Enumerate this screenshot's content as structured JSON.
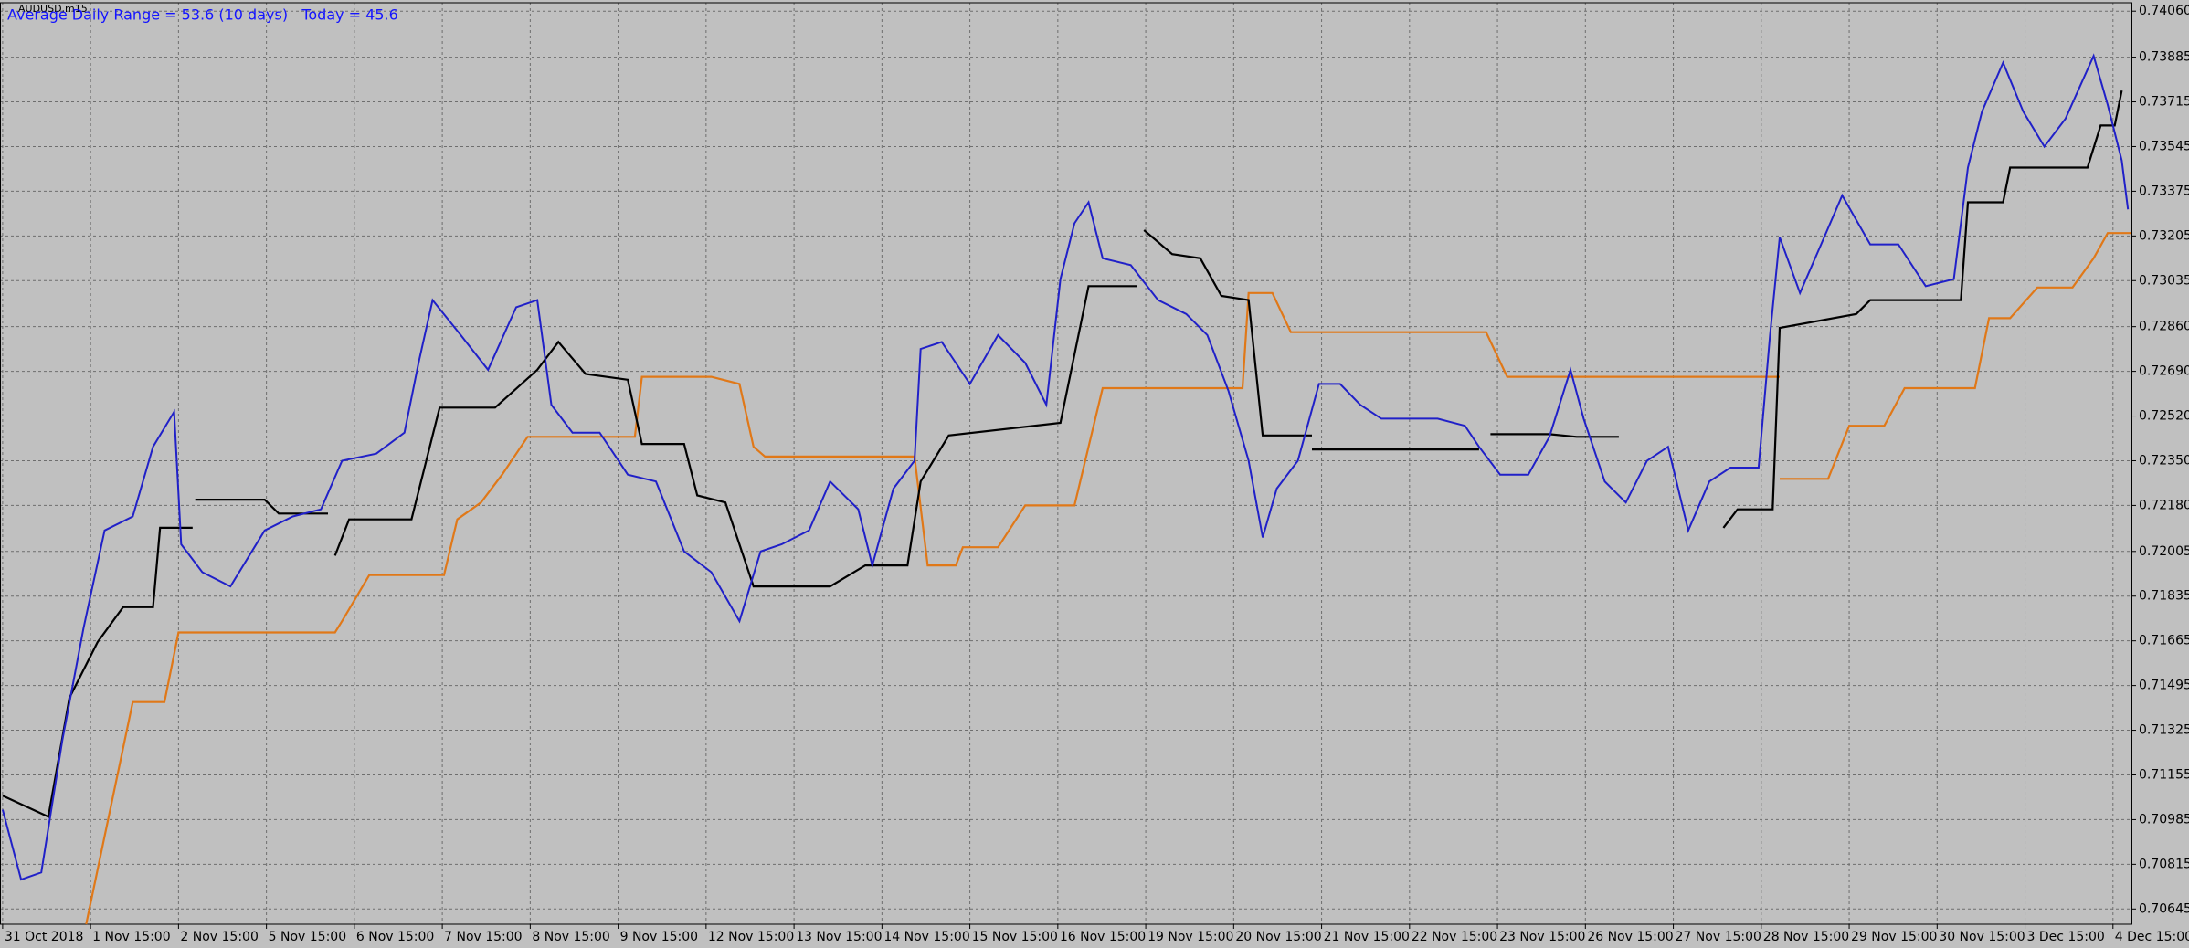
{
  "chart_data": {
    "type": "line",
    "title": "Average Daily Range = 53.6 (10 days)   Today = 45.6",
    "subtitle": "AUDUSD,m15",
    "xlim": [
      -0.03,
      24.21
    ],
    "xticks": [
      {
        "value": 0,
        "label": "31 Oct 2018"
      },
      {
        "value": 1,
        "label": "1 Nov 15:00"
      },
      {
        "value": 2,
        "label": "2 Nov 15:00"
      },
      {
        "value": 3,
        "label": "5 Nov 15:00"
      },
      {
        "value": 4,
        "label": "6 Nov 15:00"
      },
      {
        "value": 5,
        "label": "7 Nov 15:00"
      },
      {
        "value": 6,
        "label": "8 Nov 15:00"
      },
      {
        "value": 7,
        "label": "9 Nov 15:00"
      },
      {
        "value": 8,
        "label": "12 Nov 15:00"
      },
      {
        "value": 9,
        "label": "13 Nov 15:00"
      },
      {
        "value": 10,
        "label": "14 Nov 15:00"
      },
      {
        "value": 11,
        "label": "15 Nov 15:00"
      },
      {
        "value": 12,
        "label": "16 Nov 15:00"
      },
      {
        "value": 13,
        "label": "19 Nov 15:00"
      },
      {
        "value": 14,
        "label": "20 Nov 15:00"
      },
      {
        "value": 15,
        "label": "21 Nov 15:00"
      },
      {
        "value": 16,
        "label": "22 Nov 15:00"
      },
      {
        "value": 17,
        "label": "23 Nov 15:00"
      },
      {
        "value": 18,
        "label": "26 Nov 15:00"
      },
      {
        "value": 19,
        "label": "27 Nov 15:00"
      },
      {
        "value": 20,
        "label": "28 Nov 15:00"
      },
      {
        "value": 21,
        "label": "29 Nov 15:00"
      },
      {
        "value": 22,
        "label": "30 Nov 15:00"
      },
      {
        "value": 23,
        "label": "3 Dec 15:00"
      },
      {
        "value": 24,
        "label": "4 Dec 15:00"
      }
    ],
    "ylim": [
      0.70587,
      0.74092
    ],
    "yticks": [
      {
        "value": 0.7406,
        "label": "0.74060"
      },
      0.73885,
      0.73715,
      0.73545,
      0.73375,
      0.73205,
      0.73035,
      {
        "value": 0.7286,
        "label": "0.72860"
      },
      {
        "value": 0.7269,
        "label": "0.72690"
      },
      {
        "value": 0.7252,
        "label": "0.72520"
      },
      {
        "value": 0.7235,
        "label": "0.72350"
      },
      {
        "value": 0.7218,
        "label": "0.72180"
      },
      0.72005,
      0.71835,
      0.71665,
      0.71495,
      0.71325,
      0.71155,
      0.70985,
      0.70815,
      0.70645
    ],
    "grid": true,
    "series": [
      {
        "color": "#2020c8",
        "x": [
          0,
          0.21,
          0.44,
          0.68,
          0.92,
          1.16,
          1.48,
          1.71,
          1.95,
          2.03,
          2.27,
          2.59,
          2.98,
          3.3,
          3.62,
          3.86,
          4.25,
          4.57,
          4.73,
          4.89,
          5.21,
          5.52,
          5.84,
          6.08,
          6.24,
          6.48,
          6.79,
          7.11,
          7.43,
          7.75,
          8.06,
          8.38,
          8.62,
          8.86,
          9.17,
          9.41,
          9.73,
          9.89,
          10.13,
          10.37,
          10.44,
          10.68,
          11.0,
          11.32,
          11.63,
          11.87,
          12.03,
          12.19,
          12.35,
          12.51,
          12.83,
          13.14,
          13.46,
          13.7,
          13.94,
          14.17,
          14.33,
          14.49,
          14.73,
          14.97,
          15.21,
          15.44,
          15.68,
          16.0,
          16.32,
          16.63,
          16.79,
          17.03,
          17.35,
          17.59,
          17.83,
          17.98,
          18.22,
          18.46,
          18.7,
          18.94,
          19.17,
          19.41,
          19.65,
          19.97,
          20.1,
          20.21,
          20.44,
          20.68,
          20.92,
          21.24,
          21.56,
          21.87,
          22.19,
          22.35,
          22.51,
          22.75,
          22.98,
          23.22,
          23.46,
          23.78,
          23.94,
          24.1,
          24.17
        ],
        "values": [
          0.71023,
          0.70757,
          0.70784,
          0.71288,
          0.71713,
          0.72085,
          0.72138,
          0.72403,
          0.72536,
          0.72032,
          0.71926,
          0.71872,
          0.72085,
          0.72138,
          0.72165,
          0.7235,
          0.72377,
          0.72457,
          0.72722,
          0.72961,
          0.72828,
          0.72696,
          0.72934,
          0.72961,
          0.72563,
          0.72457,
          0.72457,
          0.72297,
          0.72271,
          0.72005,
          0.71926,
          0.7174,
          0.72005,
          0.72032,
          0.72085,
          0.72271,
          0.72165,
          0.71952,
          0.72244,
          0.7235,
          0.72775,
          0.72802,
          0.72642,
          0.72828,
          0.72722,
          0.72563,
          0.73041,
          0.73253,
          0.73333,
          0.7312,
          0.73094,
          0.72961,
          0.72908,
          0.72828,
          0.72616,
          0.7235,
          0.72058,
          0.72244,
          0.7235,
          0.72642,
          0.72642,
          0.72563,
          0.7251,
          0.7251,
          0.7251,
          0.72483,
          0.72403,
          0.72297,
          0.72297,
          0.72441,
          0.72696,
          0.7251,
          0.72271,
          0.72191,
          0.7235,
          0.72403,
          0.72085,
          0.72271,
          0.72324,
          0.72324,
          0.72828,
          0.732,
          0.72988,
          0.73173,
          0.73359,
          0.73173,
          0.73173,
          0.73014,
          0.73041,
          0.73465,
          0.73678,
          0.73864,
          0.73678,
          0.73545,
          0.73651,
          0.7389,
          0.73704,
          0.73492,
          0.73306
        ]
      },
      {
        "color": "#000000",
        "x": [
          0,
          0.52,
          0.76,
          1.08,
          1.37,
          1.71,
          1.79,
          2.16,
          null,
          2.19,
          2.98,
          3.14,
          3.7,
          null,
          3.78,
          3.94,
          4.65,
          4.97,
          5.6,
          6.08,
          6.32,
          6.63,
          7.11,
          7.27,
          7.75,
          7.9,
          8.22,
          8.54,
          9.41,
          9.81,
          10.29,
          10.44,
          10.76,
          12.03,
          12.35,
          12.9,
          null,
          12.98,
          13.3,
          13.62,
          13.86,
          14.17,
          14.33,
          14.89,
          null,
          14.89,
          16.79,
          null,
          16.92,
          17.59,
          17.9,
          18.38,
          null,
          19.57,
          19.73,
          20.13,
          20.21,
          21.08,
          21.24,
          22.27,
          22.35,
          22.75,
          22.83,
          23.71,
          23.86,
          24.02,
          24.1
        ],
        "values": [
          0.71076,
          0.70996,
          0.71448,
          0.7166,
          0.71793,
          0.71793,
          0.72095,
          0.72095,
          null,
          0.72202,
          0.72202,
          0.72149,
          0.72149,
          null,
          0.71989,
          0.72127,
          0.72127,
          0.72552,
          0.72552,
          0.72696,
          0.72802,
          0.7268,
          0.72658,
          0.72414,
          0.72414,
          0.72218,
          0.72191,
          0.71872,
          0.71872,
          0.71952,
          0.71952,
          0.72271,
          0.72446,
          0.72494,
          0.73014,
          0.73014,
          null,
          0.73227,
          0.73136,
          0.7312,
          0.72977,
          0.72961,
          0.72446,
          0.72446,
          null,
          0.72393,
          0.72393,
          null,
          0.72451,
          0.72451,
          0.72441,
          0.72441,
          null,
          0.72095,
          0.72165,
          0.72165,
          0.72855,
          0.72908,
          0.72961,
          0.72961,
          0.73333,
          0.73333,
          0.73465,
          0.73465,
          0.73625,
          0.73625,
          0.73758
        ]
      },
      {
        "color": "#e07818",
        "x": [
          0.95,
          1.48,
          1.84,
          2.0,
          3.78,
          3.86,
          4.17,
          5.02,
          5.17,
          5.44,
          5.68,
          5.97,
          7.19,
          7.27,
          8.06,
          8.38,
          8.54,
          8.67,
          10.37,
          10.52,
          10.84,
          10.92,
          11.32,
          11.63,
          12.19,
          12.51,
          14.1,
          14.17,
          14.44,
          14.65,
          16.87,
          17.11,
          20.21,
          null,
          20.21,
          20.76,
          21.0,
          21.4,
          21.63,
          22.43,
          22.59,
          22.83,
          23.14,
          23.54,
          23.78,
          23.94,
          24.21
        ],
        "values": [
          0.70587,
          0.71432,
          0.71432,
          0.71697,
          0.71697,
          0.7174,
          0.71915,
          0.71915,
          0.72127,
          0.72191,
          0.72297,
          0.72441,
          0.72441,
          0.72669,
          0.72669,
          0.72642,
          0.72403,
          0.72366,
          0.72366,
          0.71952,
          0.71952,
          0.72021,
          0.72021,
          0.7218,
          0.7218,
          0.72626,
          0.72626,
          0.72988,
          0.72988,
          0.72839,
          0.72839,
          0.72669,
          0.72669,
          null,
          0.72281,
          0.72281,
          0.72483,
          0.72483,
          0.72626,
          0.72626,
          0.72892,
          0.72892,
          0.73009,
          0.73009,
          0.7312,
          0.73216,
          0.73216
        ]
      }
    ]
  }
}
